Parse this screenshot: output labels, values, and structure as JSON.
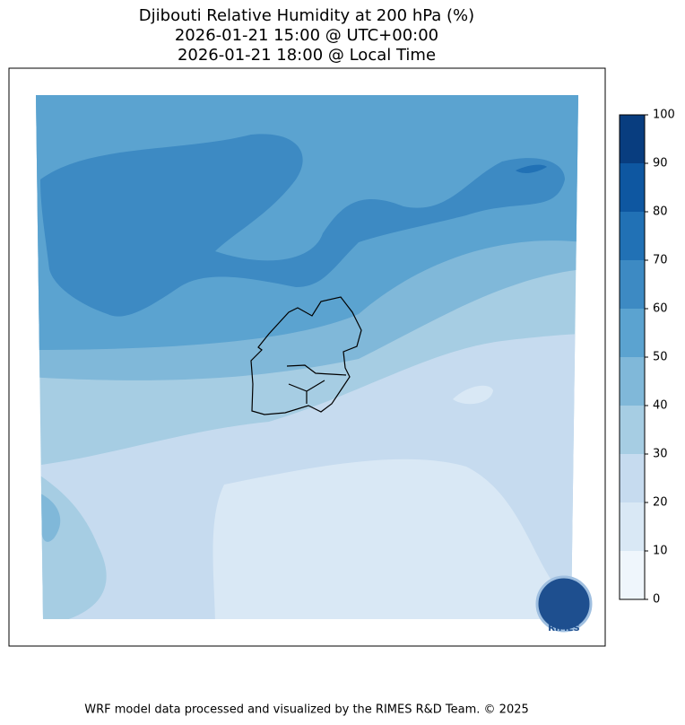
{
  "title": [
    "Djibouti Relative Humidity at 200 hPa (%)",
    "2026-01-21 15:00 @ UTC+00:00",
    "2026-01-21 18:00 @ Local Time"
  ],
  "colorbar": {
    "ticks": [
      0,
      10,
      20,
      30,
      40,
      50,
      60,
      70,
      80,
      90,
      100
    ],
    "colors": [
      "#eff6fc",
      "#d9e8f5",
      "#c6dbef",
      "#a6cde3",
      "#80b8d9",
      "#5ba3d0",
      "#3d8ac3",
      "#2171b5",
      "#0e57a1",
      "#083d7f"
    ]
  },
  "logo_text": "RIMES",
  "footer": "WRF model data processed and visualized by the RIMES R&D Team. © 2025"
}
